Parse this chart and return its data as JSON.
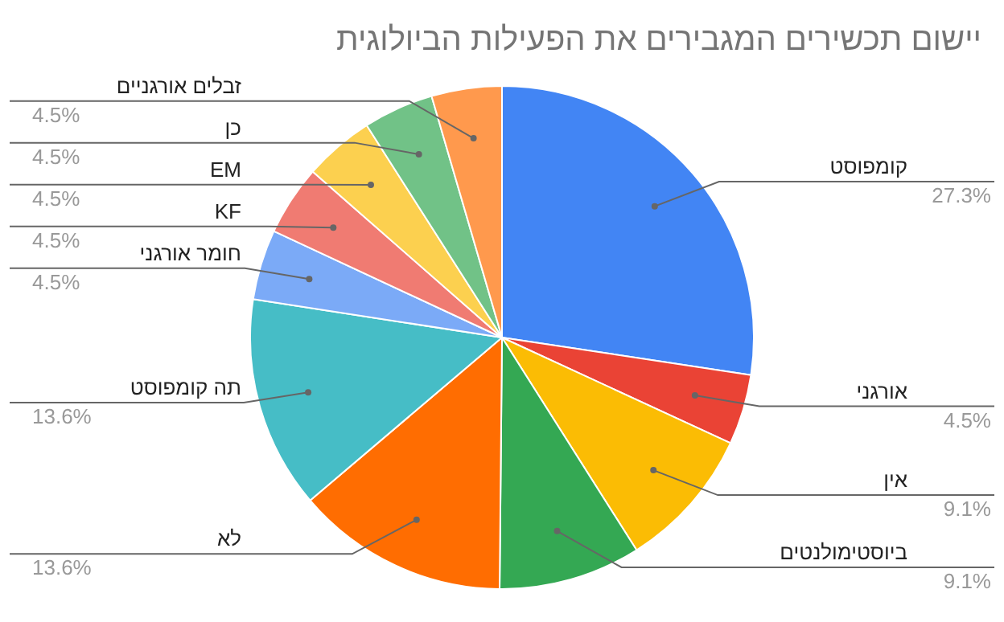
{
  "chart_data": {
    "type": "pie",
    "title": "יישום תכשירים המגבירים את הפעילות הביולוגית",
    "categories": [
      "קומפוסט",
      "אורגני",
      "אין",
      "ביוסטימולנטים",
      "לא",
      "תה קומפוסט",
      "חומר אורגני",
      "KF",
      "EM",
      "כן",
      "זבלים אורגניים"
    ],
    "values": [
      27.3,
      4.5,
      9.1,
      9.1,
      13.6,
      13.6,
      4.5,
      4.5,
      4.5,
      4.5,
      4.5
    ],
    "value_labels": [
      "27.3%",
      "4.5%",
      "9.1%",
      "9.1%",
      "13.6%",
      "13.6%",
      "4.5%",
      "4.5%",
      "4.5%",
      "4.5%",
      "4.5%"
    ],
    "colors": [
      "#4285f4",
      "#ea4335",
      "#fbbc04",
      "#34a853",
      "#ff6d01",
      "#46bdc6",
      "#7baaf7",
      "#f07b72",
      "#fcd04f",
      "#71c287",
      "#ff994d"
    ],
    "legend": false
  }
}
